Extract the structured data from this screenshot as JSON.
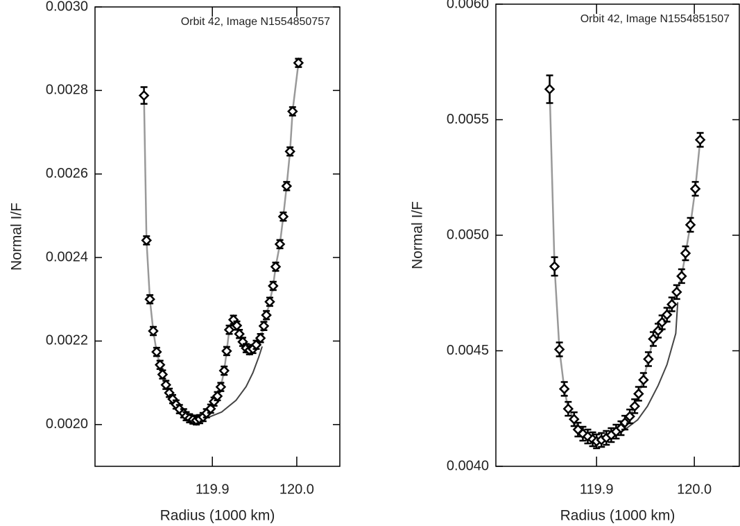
{
  "chart_data": [
    {
      "type": "scatter",
      "annotation": "Orbit 42, Image N1554850757",
      "xlabel": "Radius (1000 km)",
      "ylabel": "Normal I/F",
      "xlim": [
        119.761,
        120.051
      ],
      "ylim": [
        0.0019,
        0.003
      ],
      "xticks": [
        119.9,
        {
          "value": 120,
          "label": "120.0"
        }
      ],
      "yticks": [
        {
          "value": 0.002,
          "label": "0.0020"
        },
        {
          "value": 0.0022,
          "label": "0.0022"
        },
        {
          "value": 0.0024,
          "label": "0.0024"
        },
        {
          "value": 0.0026,
          "label": "0.0026"
        },
        {
          "value": 0.0028,
          "label": "0.0028"
        },
        {
          "value": 0.003,
          "label": "0.0030"
        }
      ],
      "color": "#000000",
      "line_color": "#999999",
      "x": [
        119.819,
        119.822,
        119.826,
        119.83,
        119.834,
        119.838,
        119.841,
        119.845,
        119.849,
        119.853,
        119.857,
        119.861,
        119.866,
        119.869,
        119.873,
        119.877,
        119.881,
        119.885,
        119.889,
        119.893,
        119.898,
        119.902,
        119.906,
        119.91,
        119.914,
        119.917,
        119.92,
        119.925,
        119.929,
        119.932,
        119.936,
        119.94,
        119.944,
        119.948,
        119.952,
        119.957,
        119.961,
        119.964,
        119.968,
        119.972,
        119.975,
        119.98,
        119.984,
        119.988,
        119.992,
        119.995,
        120.002
      ],
      "values": [
        0.002788,
        0.002441,
        0.0023,
        0.002224,
        0.002174,
        0.002143,
        0.00212,
        0.002095,
        0.002076,
        0.002061,
        0.002048,
        0.002037,
        0.002027,
        0.00202,
        0.002015,
        0.002012,
        0.00201,
        0.002013,
        0.002018,
        0.002027,
        0.002038,
        0.002055,
        0.002068,
        0.00209,
        0.002129,
        0.002176,
        0.002227,
        0.002251,
        0.002237,
        0.002217,
        0.002198,
        0.002183,
        0.002178,
        0.002181,
        0.002191,
        0.002207,
        0.002236,
        0.002262,
        0.002294,
        0.002332,
        0.002378,
        0.002432,
        0.002498,
        0.002571,
        0.002654,
        0.00275,
        0.002866
      ],
      "errors": [
        2e-05,
        1e-05,
        1e-05,
        1e-05,
        1e-05,
        1e-05,
        1e-05,
        1e-05,
        1e-05,
        1e-05,
        1e-05,
        1e-05,
        1e-05,
        1e-05,
        1e-05,
        1e-05,
        1e-05,
        1e-05,
        1e-05,
        1e-05,
        1e-05,
        1e-05,
        1e-05,
        1e-05,
        1e-05,
        1e-05,
        1e-05,
        1e-05,
        1e-05,
        1e-05,
        1e-05,
        1e-05,
        1e-05,
        1e-05,
        1e-05,
        1e-05,
        1e-05,
        1e-05,
        1e-05,
        1e-05,
        1e-05,
        1e-05,
        1e-05,
        1e-05,
        1e-05,
        1e-05,
        1e-05
      ],
      "baseline": {
        "color": "#444444",
        "x": [
          119.895,
          119.911,
          119.928,
          119.94,
          119.948,
          119.955,
          119.959
        ],
        "values": [
          0.002017,
          0.00203,
          0.002058,
          0.002091,
          0.002124,
          0.002162,
          0.002187
        ]
      }
    },
    {
      "type": "scatter",
      "annotation": "Orbit 42, Image N1554851507",
      "xlabel": "Radius (1000 km)",
      "ylabel": "Normal I/F",
      "xlim": [
        119.797,
        120.046
      ],
      "ylim": [
        0.004,
        0.006
      ],
      "xticks": [
        119.9,
        {
          "value": 120,
          "label": "120.0"
        }
      ],
      "yticks": [
        {
          "value": 0.004,
          "label": "0.0040"
        },
        0.0045,
        {
          "value": 0.005,
          "label": "0.0050"
        },
        0.0055,
        {
          "value": 0.006,
          "label": "0.0060"
        }
      ],
      "color": "#000000",
      "line_color": "#999999",
      "x": [
        119.852,
        119.857,
        119.862,
        119.867,
        119.871,
        119.877,
        119.881,
        119.886,
        119.891,
        119.896,
        119.9,
        119.905,
        119.91,
        119.915,
        119.92,
        119.925,
        119.929,
        119.934,
        119.939,
        119.943,
        119.948,
        119.953,
        119.958,
        119.963,
        119.967,
        119.972,
        119.977,
        119.982,
        119.987,
        119.991,
        119.996,
        120.001,
        120.006
      ],
      "values": [
        0.005632,
        0.004865,
        0.004506,
        0.004335,
        0.004249,
        0.004204,
        0.004159,
        0.004141,
        0.004129,
        0.004117,
        0.004108,
        0.004114,
        0.004123,
        0.004135,
        0.00415,
        0.004165,
        0.004189,
        0.004216,
        0.00426,
        0.004314,
        0.004374,
        0.004464,
        0.004551,
        0.004587,
        0.004623,
        0.004656,
        0.004701,
        0.004754,
        0.004823,
        0.004922,
        0.005045,
        0.005201,
        0.005413
      ],
      "errors": [
        6e-05,
        4e-05,
        3e-05,
        3e-05,
        3e-05,
        3e-05,
        3e-05,
        3e-05,
        3e-05,
        3e-05,
        3e-05,
        3e-05,
        3e-05,
        3e-05,
        3e-05,
        3e-05,
        3e-05,
        3e-05,
        3e-05,
        3e-05,
        3e-05,
        3e-05,
        3e-05,
        3e-05,
        3e-05,
        3e-05,
        3e-05,
        3e-05,
        3e-05,
        3e-05,
        3e-05,
        3e-05,
        3e-05
      ],
      "baseline": {
        "color": "#444444",
        "x": [
          119.913,
          119.928,
          119.942,
          119.952,
          119.963,
          119.972,
          119.981,
          119.983
        ],
        "values": [
          0.004132,
          0.004156,
          0.004201,
          0.00426,
          0.00435,
          0.00444,
          0.004575,
          0.00471
        ]
      }
    }
  ]
}
